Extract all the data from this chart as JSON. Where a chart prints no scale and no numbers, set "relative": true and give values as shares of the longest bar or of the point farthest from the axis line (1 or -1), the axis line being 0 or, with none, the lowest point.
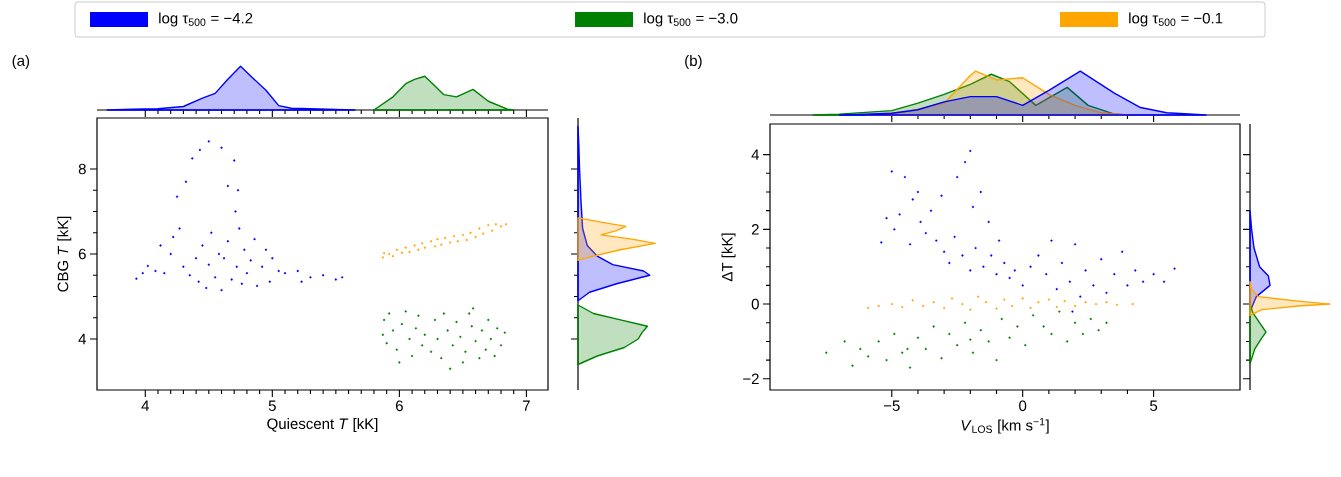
{
  "chart_data": [
    {
      "type": "area",
      "relative": true,
      "xlim": [
        3.62,
        7.17
      ],
      "tick_labels": false,
      "line_style": "solid",
      "xticks": [
        4,
        5,
        6,
        7
      ],
      "series": [
        {
          "color": "#0000ff",
          "x": [
            3.7,
            3.9,
            4.1,
            4.3,
            4.45,
            4.55,
            4.65,
            4.75,
            4.85,
            4.95,
            5.05,
            5.15,
            5.3,
            5.5,
            5.65
          ],
          "values": [
            0,
            0.02,
            0.03,
            0.08,
            0.27,
            0.38,
            0.7,
            1.0,
            0.72,
            0.45,
            0.1,
            0.04,
            0.03,
            0.01,
            0
          ]
        },
        {
          "color": "#008000",
          "x": [
            5.8,
            5.95,
            6.05,
            6.12,
            6.2,
            6.28,
            6.35,
            6.45,
            6.58,
            6.7,
            6.85,
            6.9
          ],
          "values": [
            0,
            0.3,
            0.6,
            0.7,
            0.77,
            0.55,
            0.35,
            0.3,
            0.47,
            0.2,
            0.02,
            0
          ]
        }
      ]
    },
    {
      "type": "scatter",
      "xlabel": "Quiescent *T* [kK]",
      "ylabel": "CBG *T* [kK]",
      "xlim": [
        3.62,
        7.17
      ],
      "ylim": [
        2.8,
        9.2
      ],
      "xticks": [
        4,
        5,
        6,
        7
      ],
      "yticks": [
        4,
        6,
        8
      ],
      "marker": "circle",
      "legend": "top",
      "annotations": [
        "(a)"
      ],
      "series": [
        {
          "name": "log τ$_{500}$ = −4.2",
          "color": "#0000ff",
          "x": [
            3.93,
            3.98,
            4.02,
            4.08,
            4.12,
            4.15,
            4.2,
            4.22,
            4.25,
            4.27,
            4.3,
            4.32,
            4.35,
            4.37,
            4.4,
            4.42,
            4.43,
            4.45,
            4.48,
            4.5,
            4.5,
            4.52,
            4.55,
            4.58,
            4.6,
            4.6,
            4.62,
            4.65,
            4.65,
            4.68,
            4.7,
            4.71,
            4.72,
            4.73,
            4.74,
            4.76,
            4.78,
            4.8,
            4.83,
            4.86,
            4.88,
            4.92,
            4.95,
            4.98,
            5.0,
            5.05,
            5.1,
            5.2,
            5.23,
            5.3,
            5.4,
            5.5,
            5.55
          ],
          "values": [
            5.42,
            5.55,
            5.72,
            5.6,
            6.2,
            5.55,
            6.0,
            6.4,
            7.35,
            6.6,
            5.7,
            7.7,
            5.5,
            8.25,
            5.9,
            5.35,
            8.45,
            6.2,
            5.2,
            8.65,
            5.75,
            6.5,
            5.45,
            6.0,
            8.5,
            5.15,
            5.9,
            7.6,
            6.3,
            5.4,
            8.2,
            7.0,
            5.7,
            7.5,
            6.6,
            5.3,
            6.1,
            5.55,
            5.85,
            6.35,
            5.25,
            5.7,
            6.1,
            5.35,
            5.9,
            5.6,
            5.55,
            5.6,
            5.35,
            5.45,
            5.5,
            5.4,
            5.45
          ]
        },
        {
          "name": "log τ$_{500}$ = −3.0",
          "color": "#008000",
          "x": [
            5.87,
            5.88,
            5.9,
            5.92,
            5.95,
            5.98,
            6.0,
            6.02,
            6.05,
            6.08,
            6.1,
            6.13,
            6.15,
            6.18,
            6.2,
            6.25,
            6.28,
            6.3,
            6.33,
            6.35,
            6.38,
            6.4,
            6.42,
            6.45,
            6.48,
            6.5,
            6.52,
            6.55,
            6.57,
            6.58,
            6.6,
            6.63,
            6.65,
            6.68,
            6.7,
            6.72,
            6.75,
            6.77,
            6.8,
            6.83
          ],
          "values": [
            4.1,
            4.45,
            3.9,
            4.6,
            4.2,
            3.75,
            3.45,
            4.35,
            4.65,
            4.0,
            3.6,
            4.25,
            4.55,
            3.85,
            4.1,
            3.7,
            4.45,
            4.0,
            3.55,
            4.6,
            4.2,
            3.3,
            3.85,
            4.4,
            4.05,
            3.45,
            3.7,
            4.6,
            4.3,
            4.72,
            3.95,
            3.55,
            4.2,
            3.75,
            4.45,
            4.0,
            3.6,
            4.25,
            3.85,
            4.15
          ]
        },
        {
          "name": "log τ$_{500}$ = −0.1",
          "color": "#ffa500",
          "x": [
            5.87,
            5.88,
            5.92,
            5.95,
            5.98,
            6.02,
            6.05,
            6.08,
            6.12,
            6.15,
            6.18,
            6.2,
            6.25,
            6.28,
            6.3,
            6.33,
            6.36,
            6.4,
            6.43,
            6.46,
            6.5,
            6.53,
            6.56,
            6.6,
            6.63,
            6.66,
            6.7,
            6.73,
            6.76,
            6.8,
            6.84
          ],
          "values": [
            5.92,
            6.02,
            6.0,
            5.95,
            6.1,
            6.03,
            6.15,
            6.05,
            6.2,
            6.1,
            6.25,
            6.15,
            6.3,
            6.18,
            6.35,
            6.22,
            6.38,
            6.27,
            6.42,
            6.3,
            6.45,
            6.33,
            6.5,
            6.4,
            6.6,
            6.48,
            6.68,
            6.55,
            6.7,
            6.65,
            6.7
          ]
        }
      ]
    },
    {
      "type": "area",
      "relative": true,
      "orientation": "horizontal",
      "ylim": [
        2.8,
        9.2
      ],
      "tick_labels": false,
      "line_style": "solid",
      "yticks": [
        4,
        6,
        8
      ],
      "series": [
        {
          "color": "#0000ff",
          "x": [
            4.9,
            5.1,
            5.3,
            5.5,
            5.6,
            5.75,
            5.95,
            6.2,
            6.6,
            7.2,
            8.0,
            8.6,
            9.0
          ],
          "values": [
            0,
            0.15,
            0.5,
            0.93,
            0.85,
            0.45,
            0.25,
            0.12,
            0.06,
            0.04,
            0.02,
            0.01,
            0
          ]
        },
        {
          "color": "#008000",
          "x": [
            3.4,
            3.6,
            3.8,
            4.0,
            4.15,
            4.3,
            4.45,
            4.6,
            4.8
          ],
          "values": [
            0,
            0.25,
            0.6,
            0.78,
            0.83,
            0.9,
            0.55,
            0.2,
            0
          ]
        },
        {
          "color": "#ffa500",
          "x": [
            5.85,
            5.95,
            6.1,
            6.25,
            6.35,
            6.45,
            6.55,
            6.65,
            6.75,
            6.85
          ],
          "values": [
            0,
            0.2,
            0.55,
            1.0,
            0.7,
            0.3,
            0.5,
            0.62,
            0.3,
            0
          ]
        }
      ]
    },
    {
      "type": "area",
      "relative": true,
      "xlim": [
        -9.65,
        8.3
      ],
      "tick_labels": false,
      "line_style": "solid",
      "xticks": [
        -5,
        0,
        5
      ],
      "series": [
        {
          "color": "#008000",
          "x": [
            -8,
            -7,
            -5,
            -4,
            -3,
            -2,
            -1.2,
            -0.5,
            0.5,
            1.7,
            2.5,
            3.5,
            4
          ],
          "values": [
            0,
            0.02,
            0.1,
            0.27,
            0.47,
            0.7,
            0.93,
            0.76,
            0.22,
            0.63,
            0.22,
            0.02,
            0
          ]
        },
        {
          "color": "#ffa500",
          "x": [
            -6,
            -4.5,
            -3,
            -2,
            -1.8,
            -1,
            0,
            1,
            2,
            3,
            4
          ],
          "values": [
            0,
            0.07,
            0.27,
            0.9,
            1.0,
            0.8,
            0.85,
            0.47,
            0.22,
            0.05,
            0
          ]
        },
        {
          "color": "#0000ff",
          "x": [
            -7,
            -6,
            -5,
            -4,
            -3,
            -2,
            -1,
            0,
            1,
            2.2,
            3.5,
            4.5,
            5.5,
            7
          ],
          "values": [
            0,
            0.02,
            0.04,
            0.12,
            0.3,
            0.42,
            0.42,
            0.22,
            0.56,
            1.0,
            0.5,
            0.17,
            0.05,
            0
          ]
        }
      ]
    },
    {
      "type": "scatter",
      "xlabel": "*V*$_{LOS}$ [km s$^{−1}$]",
      "ylabel": "ΔT [kK]",
      "xlim": [
        -9.65,
        8.3
      ],
      "ylim": [
        -2.3,
        4.82
      ],
      "marker": "circle",
      "annotations": [
        "(b)"
      ],
      "xticks": [
        {
          "value": -5,
          "label": "−5"
        },
        0,
        5
      ],
      "yticks": [
        {
          "value": -2,
          "label": "−2"
        },
        0,
        2,
        4
      ],
      "series": [
        {
          "color": "#0000ff",
          "x": [
            -5.4,
            -5.2,
            -5.0,
            -4.9,
            -4.7,
            -4.5,
            -4.3,
            -4.2,
            -4.0,
            -3.9,
            -3.7,
            -3.5,
            -3.3,
            -3.1,
            -3.0,
            -2.8,
            -2.6,
            -2.5,
            -2.3,
            -2.2,
            -2.0,
            -2.0,
            -1.9,
            -1.8,
            -1.6,
            -1.5,
            -1.3,
            -1.2,
            -1.0,
            -0.9,
            -0.7,
            -0.5,
            -0.3,
            0,
            0.3,
            0.6,
            0.9,
            1.1,
            1.3,
            1.5,
            1.8,
            2.0,
            2.2,
            2.4,
            2.7,
            3.0,
            3.2,
            3.5,
            3.8,
            4.0,
            4.3,
            4.6,
            5.0,
            5.4,
            5.8,
            1.9
          ],
          "values": [
            1.65,
            2.3,
            3.55,
            2.0,
            2.4,
            3.4,
            1.6,
            2.8,
            3.0,
            2.2,
            1.9,
            2.5,
            1.7,
            2.9,
            1.4,
            1.1,
            1.8,
            3.4,
            1.3,
            3.8,
            4.1,
            0.9,
            2.6,
            1.5,
            3.0,
            1.0,
            2.2,
            1.3,
            0.8,
            1.7,
            1.1,
            0.7,
            0.9,
            0.5,
            1.0,
            1.3,
            0.8,
            1.7,
            0.4,
            1.1,
            0.6,
            1.6,
            0.2,
            0.9,
            0.5,
            1.2,
            0.3,
            0.8,
            1.4,
            0.5,
            0.9,
            0.6,
            0.8,
            0.6,
            0.95,
            -0.2
          ]
        },
        {
          "color": "#ffa500",
          "x": [
            -5.9,
            -5.5,
            -5.0,
            -4.6,
            -4.2,
            -3.8,
            -3.4,
            -3.0,
            -2.7,
            -2.3,
            -2.0,
            -1.7,
            -1.4,
            -1.0,
            -0.7,
            -0.4,
            0,
            0.3,
            0.6,
            1.0,
            1.3,
            1.6,
            2.0,
            2.4,
            2.8,
            3.2,
            3.6,
            4.2
          ],
          "values": [
            -0.1,
            -0.05,
            0.0,
            -0.08,
            0.1,
            -0.05,
            0.05,
            -0.1,
            0.15,
            0.0,
            -0.15,
            0.2,
            0.05,
            -0.12,
            0.12,
            -0.05,
            0.15,
            -0.1,
            0.05,
            0.12,
            -0.08,
            0.08,
            -0.05,
            0.05,
            0.0,
            0.05,
            -0.02,
            0.0
          ]
        },
        {
          "color": "#008000",
          "x": [
            -7.5,
            -6.8,
            -6.5,
            -6.2,
            -5.9,
            -5.5,
            -5.2,
            -4.9,
            -4.6,
            -4.4,
            -4.3,
            -4.0,
            -3.7,
            -3.4,
            -3.1,
            -2.8,
            -2.5,
            -2.2,
            -2.0,
            -1.9,
            -1.6,
            -1.3,
            -1.0,
            -0.8,
            -0.5,
            -0.2,
            0.1,
            0.4,
            0.8,
            1.1,
            1.4,
            1.7,
            2.0,
            2.3,
            2.6,
            2.9,
            3.2
          ],
          "values": [
            -1.3,
            -1.0,
            -1.65,
            -1.2,
            -1.4,
            -1.0,
            -1.5,
            -0.8,
            -1.3,
            -1.2,
            -1.7,
            -0.9,
            -1.2,
            -0.6,
            -1.45,
            -0.8,
            -1.1,
            -0.5,
            -0.95,
            -1.3,
            -0.7,
            -1.0,
            -1.5,
            -0.4,
            -0.9,
            -0.6,
            -1.1,
            -0.3,
            -0.6,
            -0.8,
            -0.2,
            -1.0,
            -0.5,
            -0.8,
            -0.4,
            -0.7,
            -0.5
          ]
        }
      ]
    },
    {
      "type": "area",
      "relative": true,
      "orientation": "horizontal",
      "ylim": [
        -2.3,
        4.82
      ],
      "tick_labels": false,
      "line_style": "solid",
      "yticks": [
        -2,
        0,
        2,
        4
      ],
      "series": [
        {
          "color": "#0000ff",
          "x": [
            -0.2,
            0.2,
            0.5,
            0.75,
            1.0,
            1.5,
            2.0,
            2.5
          ],
          "values": [
            0,
            0.08,
            0.25,
            0.23,
            0.12,
            0.05,
            0.02,
            0
          ]
        },
        {
          "color": "#008000",
          "x": [
            -1.6,
            -1.2,
            -0.9,
            -0.75,
            -0.5,
            -0.25,
            0
          ],
          "values": [
            0,
            0.06,
            0.15,
            0.2,
            0.12,
            0.04,
            0
          ]
        },
        {
          "color": "#ffa500",
          "x": [
            -0.3,
            -0.15,
            -0.05,
            0,
            0.08,
            0.2,
            0.4,
            0.6
          ],
          "values": [
            0,
            0.15,
            0.6,
            1.0,
            0.6,
            0.1,
            0.02,
            0
          ]
        }
      ]
    }
  ]
}
